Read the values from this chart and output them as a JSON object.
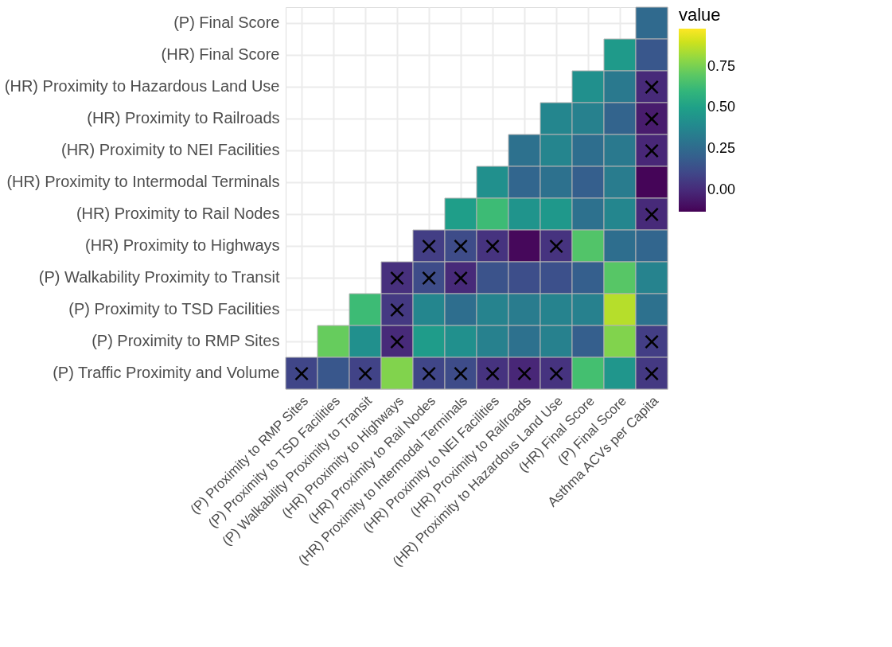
{
  "chart_data": {
    "type": "heatmap",
    "legend_title": "value",
    "grid": true,
    "categories": [
      "(P) Proximity to RMP Sites",
      "(P) Proximity to TSD Facilities",
      "(P) Walkability Proximity to Transit",
      "(HR) Proximity to Highways",
      "(HR) Proximity to Rail Nodes",
      "(HR) Proximity to Intermodal Terminals",
      "(HR) Proximity to NEI Facilities",
      "(HR) Proximity to Railroads",
      "(HR) Proximity to Hazardous Land Use",
      "(HR) Final Score",
      "(P) Final Score",
      "Asthma ACVs per Capita"
    ],
    "y_categories": [
      "(P) Final Score",
      "(HR) Final Score",
      "(HR) Proximity to Hazardous Land Use",
      "(HR) Proximity to Railroads",
      "(HR) Proximity to NEI Facilities",
      "(HR) Proximity to Intermodal Terminals",
      "(HR) Proximity to Rail Nodes",
      "(HR) Proximity to Highways",
      "(P) Walkability Proximity to Transit",
      "(P) Proximity to TSD Facilities",
      "(P) Proximity to RMP Sites",
      "(P) Traffic Proximity and Volume"
    ],
    "cells": [
      [
        null,
        null,
        null,
        null,
        null,
        null,
        null,
        null,
        null,
        null,
        null,
        0.25
      ],
      [
        null,
        null,
        null,
        null,
        null,
        null,
        null,
        null,
        null,
        null,
        0.47,
        0.17
      ],
      [
        null,
        null,
        null,
        null,
        null,
        null,
        null,
        null,
        null,
        0.42,
        0.32,
        0.0
      ],
      [
        null,
        null,
        null,
        null,
        null,
        null,
        null,
        null,
        0.38,
        0.35,
        0.22,
        -0.05
      ],
      [
        null,
        null,
        null,
        null,
        null,
        null,
        null,
        0.28,
        0.37,
        0.27,
        0.32,
        -0.01
      ],
      [
        null,
        null,
        null,
        null,
        null,
        null,
        0.42,
        0.23,
        0.28,
        0.2,
        0.33,
        -0.12
      ],
      [
        null,
        null,
        null,
        null,
        null,
        0.49,
        0.63,
        0.44,
        0.46,
        0.28,
        0.38,
        0.0
      ],
      [
        null,
        null,
        null,
        null,
        0.07,
        0.12,
        0.03,
        -0.11,
        0.03,
        0.68,
        0.27,
        0.23
      ],
      [
        null,
        null,
        null,
        0.02,
        0.12,
        0.0,
        0.15,
        0.13,
        0.14,
        0.2,
        0.69,
        0.36
      ],
      [
        null,
        null,
        0.63,
        0.05,
        0.38,
        0.27,
        0.36,
        0.33,
        0.36,
        0.35,
        0.86,
        0.28
      ],
      [
        null,
        0.72,
        0.42,
        0.0,
        0.48,
        0.42,
        0.35,
        0.28,
        0.35,
        0.2,
        0.77,
        0.07
      ],
      [
        0.1,
        0.17,
        0.09,
        0.77,
        0.1,
        0.12,
        0.03,
        -0.01,
        0.03,
        0.65,
        0.45,
        0.05
      ]
    ],
    "cell_labels": [
      [
        null,
        null,
        null,
        null,
        null,
        null,
        null,
        null,
        null,
        null,
        null,
        null
      ],
      [
        null,
        null,
        null,
        null,
        null,
        null,
        null,
        null,
        null,
        null,
        null,
        null
      ],
      [
        null,
        null,
        null,
        null,
        null,
        null,
        null,
        null,
        null,
        null,
        null,
        "×"
      ],
      [
        null,
        null,
        null,
        null,
        null,
        null,
        null,
        null,
        null,
        null,
        null,
        "×"
      ],
      [
        null,
        null,
        null,
        null,
        null,
        null,
        null,
        null,
        null,
        null,
        null,
        "×"
      ],
      [
        null,
        null,
        null,
        null,
        null,
        null,
        null,
        null,
        null,
        null,
        null,
        null
      ],
      [
        null,
        null,
        null,
        null,
        null,
        null,
        null,
        null,
        null,
        null,
        null,
        "×"
      ],
      [
        null,
        null,
        null,
        null,
        "×",
        "×",
        "×",
        null,
        "×",
        null,
        null,
        null
      ],
      [
        null,
        null,
        null,
        "×",
        "×",
        "×",
        null,
        null,
        null,
        null,
        null,
        null
      ],
      [
        null,
        null,
        null,
        "×",
        null,
        null,
        null,
        null,
        null,
        null,
        null,
        null
      ],
      [
        null,
        null,
        null,
        "×",
        null,
        null,
        null,
        null,
        null,
        null,
        null,
        "×"
      ],
      [
        "×",
        null,
        "×",
        null,
        "×",
        "×",
        "×",
        "×",
        "×",
        null,
        null,
        "×"
      ]
    ],
    "clim": [
      -0.13,
      0.98
    ],
    "cticks": [
      {
        "value": 0,
        "label": "0.00"
      },
      0.25,
      {
        "value": 0.5,
        "label": "0.50"
      },
      0.75
    ]
  }
}
